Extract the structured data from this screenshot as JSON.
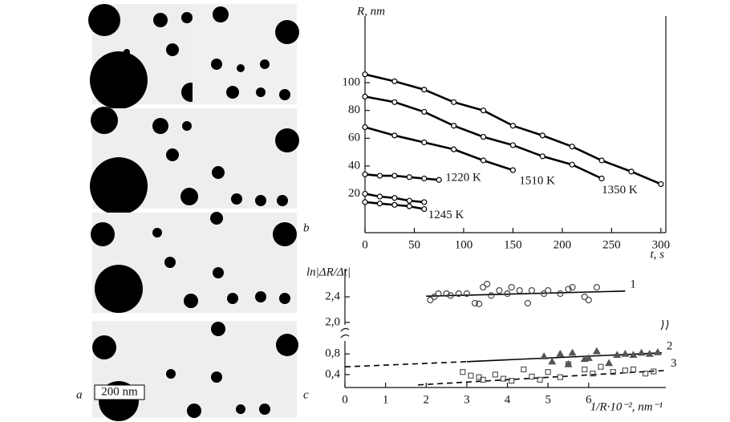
{
  "micrographs": {
    "labels": [
      "a",
      "b",
      "c"
    ],
    "scale_bar": "200 nm"
  },
  "chart_data": [
    {
      "type": "line",
      "x_label": "t, s",
      "y_label": "R, nm",
      "xlim": [
        0,
        305
      ],
      "ylim": [
        -8,
        148
      ],
      "xticks": [
        0,
        50,
        100,
        150,
        200,
        250,
        300
      ],
      "yticks": [
        20,
        40,
        60,
        80,
        100
      ],
      "series": [
        {
          "color": "#000000",
          "x": [
            0,
            30,
            60,
            90,
            120,
            150,
            180,
            210,
            240,
            270,
            300
          ],
          "values": [
            106,
            101,
            95,
            86,
            80,
            69,
            62,
            54,
            44,
            36,
            27
          ]
        },
        {
          "name": "1350 K",
          "color": "#000000",
          "x": [
            0,
            30,
            60,
            90,
            120,
            150,
            180,
            210,
            240
          ],
          "values": [
            90,
            86,
            79,
            69,
            61,
            55,
            47,
            41,
            31
          ]
        },
        {
          "name": "1510 K",
          "color": "#000000",
          "x": [
            0,
            30,
            60,
            90,
            120,
            150
          ],
          "values": [
            68,
            62,
            57,
            52,
            44,
            37
          ]
        },
        {
          "name": "1220 K",
          "color": "#000000",
          "x": [
            0,
            15,
            30,
            45,
            60,
            75
          ],
          "values": [
            34,
            33,
            33,
            32,
            31,
            30
          ]
        },
        {
          "color": "#000000",
          "x": [
            0,
            15,
            30,
            45,
            60
          ],
          "values": [
            20,
            18,
            17,
            15,
            14
          ]
        },
        {
          "name": "1245 K",
          "color": "#000000",
          "x": [
            0,
            15,
            30,
            45,
            60
          ],
          "values": [
            14,
            13,
            12,
            11,
            9
          ]
        }
      ]
    },
    {
      "type": "scatter",
      "y_label": "ln|ΔR/Δt|",
      "xlim": [
        0,
        7.9
      ],
      "ylim": [
        1.96,
        2.84
      ],
      "yticks": [
        {
          "value": 2.0,
          "label": "2,0"
        },
        {
          "value": 2.4,
          "label": "2,4"
        }
      ],
      "series": [
        {
          "name": "1",
          "marker": "circle",
          "color": "#444444",
          "x": [
            2.1,
            2.2,
            2.3,
            2.5,
            2.6,
            2.8,
            3.0,
            3.2,
            3.3,
            3.4,
            3.5,
            3.6,
            3.8,
            4.0,
            4.1,
            4.3,
            4.5,
            4.6,
            4.9,
            5.0,
            5.3,
            5.5,
            5.6,
            5.9,
            6.0,
            6.2
          ],
          "values": [
            2.35,
            2.4,
            2.45,
            2.45,
            2.42,
            2.45,
            2.45,
            2.3,
            2.29,
            2.55,
            2.6,
            2.42,
            2.5,
            2.45,
            2.55,
            2.5,
            2.3,
            2.5,
            2.45,
            2.5,
            2.45,
            2.52,
            2.55,
            2.4,
            2.35,
            2.55
          ],
          "fit": {
            "style": "solid",
            "x": [
              2.0,
              6.9
            ],
            "y": [
              2.41,
              2.49
            ]
          }
        }
      ]
    },
    {
      "type": "scatter",
      "x_label": "1/R·10⁻², nm⁻¹",
      "xlim": [
        0,
        7.9
      ],
      "ylim": [
        0.15,
        1.05
      ],
      "xticks": [
        0,
        1,
        2,
        3,
        4,
        5,
        6
      ],
      "yticks": [
        {
          "value": 0.4,
          "label": "0,4"
        },
        {
          "value": 0.8,
          "label": "0,8"
        }
      ],
      "series": [
        {
          "name": "2",
          "marker": "triangle",
          "color": "#555555",
          "x": [
            4.9,
            5.1,
            5.3,
            5.5,
            5.6,
            5.9,
            6.0,
            6.2,
            6.5,
            6.7,
            6.9,
            7.1,
            7.3,
            7.5,
            7.7
          ],
          "values": [
            0.75,
            0.65,
            0.8,
            0.6,
            0.82,
            0.7,
            0.72,
            0.85,
            0.62,
            0.78,
            0.8,
            0.78,
            0.82,
            0.8,
            0.83
          ],
          "fit": {
            "style": "dashed-solid",
            "x": [
              0,
              3,
              7.8
            ],
            "y": [
              0.55,
              0.65,
              0.82
            ]
          }
        },
        {
          "name": "3",
          "marker": "square",
          "color": "#555555",
          "x": [
            2.9,
            3.1,
            3.3,
            3.4,
            3.7,
            3.9,
            4.1,
            4.4,
            4.6,
            4.8,
            5.0,
            5.3,
            5.5,
            5.9,
            6.1,
            6.3,
            6.6,
            6.9,
            7.1,
            7.4,
            7.6
          ],
          "values": [
            0.45,
            0.38,
            0.35,
            0.3,
            0.4,
            0.32,
            0.28,
            0.5,
            0.36,
            0.3,
            0.45,
            0.35,
            0.6,
            0.5,
            0.42,
            0.55,
            0.45,
            0.48,
            0.5,
            0.42,
            0.46
          ],
          "fit": {
            "style": "dashed",
            "x": [
              1.8,
              7.9
            ],
            "y": [
              0.2,
              0.48
            ]
          }
        }
      ]
    }
  ]
}
